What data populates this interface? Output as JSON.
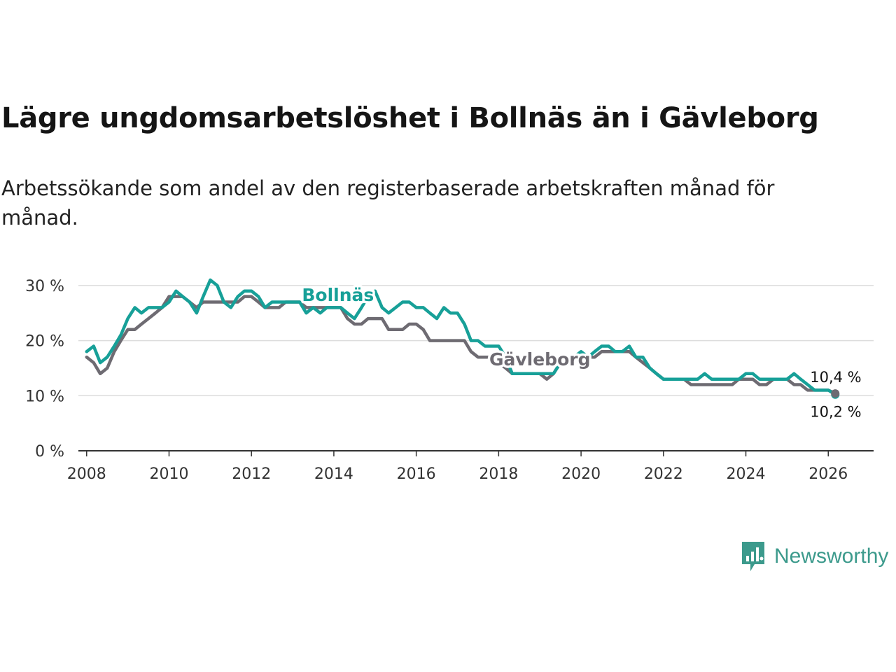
{
  "header": {
    "title": "Lägre ungdomsarbetslöshet i Bollnäs än i Gävleborg",
    "subtitle": "Arbetssökande som andel av den registerbaserade arbetskraften månad för månad."
  },
  "brand": {
    "name": "Newsworthy",
    "icon": "newsworthy-logo-icon"
  },
  "colors": {
    "bollnas": "#17a098",
    "gavleborg": "#6e6b72",
    "grid": "#dcdcdc",
    "axis": "#333333"
  },
  "chart_data": {
    "type": "line",
    "title": "Lägre ungdomsarbetslöshet i Bollnäs än i Gävleborg",
    "xlabel": "",
    "ylabel": "",
    "x_ticks": [
      "2008",
      "2010",
      "2012",
      "2014",
      "2016",
      "2018",
      "2020",
      "2022",
      "2024",
      "2026"
    ],
    "y_ticks": [
      "0 %",
      "10 %",
      "20 %",
      "30 %"
    ],
    "xlim": [
      2007.8,
      2027.1
    ],
    "ylim": [
      0,
      31
    ],
    "series": [
      {
        "name": "Bollnäs",
        "color": "#17a098",
        "end_label": "10,2 %",
        "points": [
          [
            2008.0,
            18
          ],
          [
            2008.17,
            19
          ],
          [
            2008.33,
            16
          ],
          [
            2008.5,
            17
          ],
          [
            2008.67,
            19
          ],
          [
            2008.83,
            21
          ],
          [
            2009.0,
            24
          ],
          [
            2009.17,
            26
          ],
          [
            2009.33,
            25
          ],
          [
            2009.5,
            26
          ],
          [
            2009.67,
            26
          ],
          [
            2009.83,
            26
          ],
          [
            2010.0,
            27
          ],
          [
            2010.17,
            29
          ],
          [
            2010.33,
            28
          ],
          [
            2010.5,
            27
          ],
          [
            2010.67,
            25
          ],
          [
            2010.83,
            28
          ],
          [
            2011.0,
            31
          ],
          [
            2011.17,
            30
          ],
          [
            2011.33,
            27
          ],
          [
            2011.5,
            26
          ],
          [
            2011.67,
            28
          ],
          [
            2011.83,
            29
          ],
          [
            2012.0,
            29
          ],
          [
            2012.17,
            28
          ],
          [
            2012.33,
            26
          ],
          [
            2012.5,
            27
          ],
          [
            2012.67,
            27
          ],
          [
            2012.83,
            27
          ],
          [
            2013.0,
            27
          ],
          [
            2013.17,
            27
          ],
          [
            2013.33,
            25
          ],
          [
            2013.5,
            26
          ],
          [
            2013.67,
            25
          ],
          [
            2013.83,
            26
          ],
          [
            2014.0,
            26
          ],
          [
            2014.17,
            26
          ],
          [
            2014.33,
            25
          ],
          [
            2014.5,
            24
          ],
          [
            2014.67,
            26
          ],
          [
            2014.83,
            28
          ],
          [
            2015.0,
            29
          ],
          [
            2015.17,
            26
          ],
          [
            2015.33,
            25
          ],
          [
            2015.5,
            26
          ],
          [
            2015.67,
            27
          ],
          [
            2015.83,
            27
          ],
          [
            2016.0,
            26
          ],
          [
            2016.17,
            26
          ],
          [
            2016.33,
            25
          ],
          [
            2016.5,
            24
          ],
          [
            2016.67,
            26
          ],
          [
            2016.83,
            25
          ],
          [
            2017.0,
            25
          ],
          [
            2017.17,
            23
          ],
          [
            2017.33,
            20
          ],
          [
            2017.5,
            20
          ],
          [
            2017.67,
            19
          ],
          [
            2017.83,
            19
          ],
          [
            2018.0,
            19
          ],
          [
            2018.17,
            17
          ],
          [
            2018.33,
            14
          ],
          [
            2018.5,
            14
          ],
          [
            2018.67,
            14
          ],
          [
            2018.83,
            14
          ],
          [
            2019.0,
            14
          ],
          [
            2019.17,
            14
          ],
          [
            2019.33,
            14
          ],
          [
            2019.5,
            16
          ],
          [
            2019.67,
            17
          ],
          [
            2019.83,
            17
          ],
          [
            2020.0,
            18
          ],
          [
            2020.17,
            17
          ],
          [
            2020.33,
            18
          ],
          [
            2020.5,
            19
          ],
          [
            2020.67,
            19
          ],
          [
            2020.83,
            18
          ],
          [
            2021.0,
            18
          ],
          [
            2021.17,
            19
          ],
          [
            2021.33,
            17
          ],
          [
            2021.5,
            17
          ],
          [
            2021.67,
            15
          ],
          [
            2021.83,
            14
          ],
          [
            2022.0,
            13
          ],
          [
            2022.17,
            13
          ],
          [
            2022.33,
            13
          ],
          [
            2022.5,
            13
          ],
          [
            2022.67,
            13
          ],
          [
            2022.83,
            13
          ],
          [
            2023.0,
            14
          ],
          [
            2023.17,
            13
          ],
          [
            2023.33,
            13
          ],
          [
            2023.5,
            13
          ],
          [
            2023.67,
            13
          ],
          [
            2023.83,
            13
          ],
          [
            2024.0,
            14
          ],
          [
            2024.17,
            14
          ],
          [
            2024.33,
            13
          ],
          [
            2024.5,
            13
          ],
          [
            2024.67,
            13
          ],
          [
            2024.83,
            13
          ],
          [
            2025.0,
            13
          ],
          [
            2025.17,
            14
          ],
          [
            2025.33,
            13
          ],
          [
            2025.5,
            12
          ],
          [
            2025.67,
            11
          ],
          [
            2025.83,
            11
          ],
          [
            2026.0,
            11
          ],
          [
            2026.17,
            10.2
          ]
        ]
      },
      {
        "name": "Gävleborg",
        "color": "#6e6b72",
        "end_label": "10,4 %",
        "points": [
          [
            2008.0,
            17
          ],
          [
            2008.17,
            16
          ],
          [
            2008.33,
            14
          ],
          [
            2008.5,
            15
          ],
          [
            2008.67,
            18
          ],
          [
            2008.83,
            20
          ],
          [
            2009.0,
            22
          ],
          [
            2009.17,
            22
          ],
          [
            2009.33,
            23
          ],
          [
            2009.5,
            24
          ],
          [
            2009.67,
            25
          ],
          [
            2009.83,
            26
          ],
          [
            2010.0,
            28
          ],
          [
            2010.17,
            28
          ],
          [
            2010.33,
            28
          ],
          [
            2010.5,
            27
          ],
          [
            2010.67,
            26
          ],
          [
            2010.83,
            27
          ],
          [
            2011.0,
            27
          ],
          [
            2011.17,
            27
          ],
          [
            2011.33,
            27
          ],
          [
            2011.5,
            27
          ],
          [
            2011.67,
            27
          ],
          [
            2011.83,
            28
          ],
          [
            2012.0,
            28
          ],
          [
            2012.17,
            27
          ],
          [
            2012.33,
            26
          ],
          [
            2012.5,
            26
          ],
          [
            2012.67,
            26
          ],
          [
            2012.83,
            27
          ],
          [
            2013.0,
            27
          ],
          [
            2013.17,
            27
          ],
          [
            2013.33,
            26
          ],
          [
            2013.5,
            26
          ],
          [
            2013.67,
            26
          ],
          [
            2013.83,
            26
          ],
          [
            2014.0,
            26
          ],
          [
            2014.17,
            26
          ],
          [
            2014.33,
            24
          ],
          [
            2014.5,
            23
          ],
          [
            2014.67,
            23
          ],
          [
            2014.83,
            24
          ],
          [
            2015.0,
            24
          ],
          [
            2015.17,
            24
          ],
          [
            2015.33,
            22
          ],
          [
            2015.5,
            22
          ],
          [
            2015.67,
            22
          ],
          [
            2015.83,
            23
          ],
          [
            2016.0,
            23
          ],
          [
            2016.17,
            22
          ],
          [
            2016.33,
            20
          ],
          [
            2016.5,
            20
          ],
          [
            2016.67,
            20
          ],
          [
            2016.83,
            20
          ],
          [
            2017.0,
            20
          ],
          [
            2017.17,
            20
          ],
          [
            2017.33,
            18
          ],
          [
            2017.5,
            17
          ],
          [
            2017.67,
            17
          ],
          [
            2017.83,
            17
          ],
          [
            2018.0,
            16
          ],
          [
            2018.17,
            15
          ],
          [
            2018.33,
            14
          ],
          [
            2018.5,
            14
          ],
          [
            2018.67,
            14
          ],
          [
            2018.83,
            14
          ],
          [
            2019.0,
            14
          ],
          [
            2019.17,
            13
          ],
          [
            2019.33,
            14
          ],
          [
            2019.5,
            16
          ],
          [
            2019.67,
            17
          ],
          [
            2019.83,
            17
          ],
          [
            2020.0,
            17
          ],
          [
            2020.17,
            17
          ],
          [
            2020.33,
            17
          ],
          [
            2020.5,
            18
          ],
          [
            2020.67,
            18
          ],
          [
            2020.83,
            18
          ],
          [
            2021.0,
            18
          ],
          [
            2021.17,
            18
          ],
          [
            2021.33,
            17
          ],
          [
            2021.5,
            16
          ],
          [
            2021.67,
            15
          ],
          [
            2021.83,
            14
          ],
          [
            2022.0,
            13
          ],
          [
            2022.17,
            13
          ],
          [
            2022.33,
            13
          ],
          [
            2022.5,
            13
          ],
          [
            2022.67,
            12
          ],
          [
            2022.83,
            12
          ],
          [
            2023.0,
            12
          ],
          [
            2023.17,
            12
          ],
          [
            2023.33,
            12
          ],
          [
            2023.5,
            12
          ],
          [
            2023.67,
            12
          ],
          [
            2023.83,
            13
          ],
          [
            2024.0,
            13
          ],
          [
            2024.17,
            13
          ],
          [
            2024.33,
            12
          ],
          [
            2024.5,
            12
          ],
          [
            2024.67,
            13
          ],
          [
            2024.83,
            13
          ],
          [
            2025.0,
            13
          ],
          [
            2025.17,
            12
          ],
          [
            2025.33,
            12
          ],
          [
            2025.5,
            11
          ],
          [
            2025.67,
            11
          ],
          [
            2025.83,
            11
          ],
          [
            2026.0,
            11
          ],
          [
            2026.17,
            10.4
          ]
        ]
      }
    ],
    "annotations": [
      {
        "text": "Bollnäs",
        "series": "Bollnäs",
        "x": 2014.1,
        "y": 27.2
      },
      {
        "text": "Gävleborg",
        "series": "Gävleborg",
        "x": 2019.0,
        "y": 15.5
      }
    ]
  }
}
